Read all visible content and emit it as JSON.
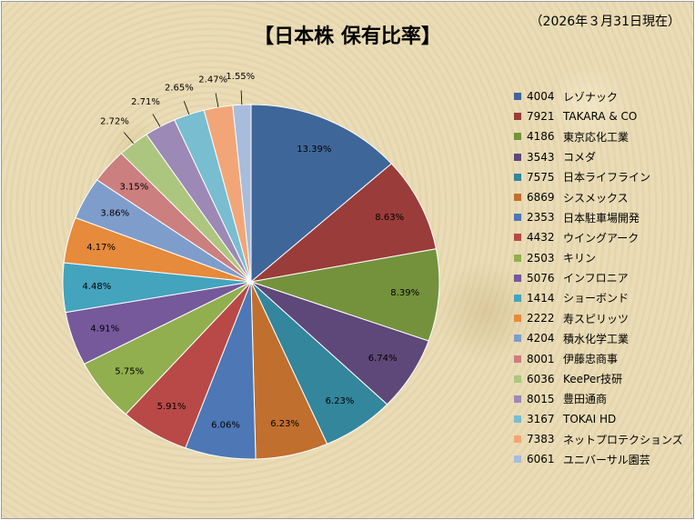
{
  "title": "【日本株 保有比率】",
  "subtitle": "（2026年３月31日現在）",
  "chart_data": {
    "type": "pie",
    "title": "【日本株 保有比率】",
    "subtitle": "（2026年３月31日現在）",
    "legend_position": "right",
    "slices": [
      {
        "code": "4004",
        "name": "レゾナック",
        "value": 13.39,
        "label": "13.39%",
        "color": "#3F6699"
      },
      {
        "code": "7921",
        "name": "TAKARA & CO",
        "value": 8.63,
        "label": "8.63%",
        "color": "#9A3C3A"
      },
      {
        "code": "4186",
        "name": "東京応化工業",
        "value": 8.39,
        "label": "8.39%",
        "color": "#74923C"
      },
      {
        "code": "3543",
        "name": "コメダ",
        "value": 6.74,
        "label": "6.74%",
        "color": "#5E4879"
      },
      {
        "code": "7575",
        "name": "日本ライフライン",
        "value": 6.23,
        "label": "6.23%",
        "color": "#33869C"
      },
      {
        "code": "6869",
        "name": "シスメックス",
        "value": 6.23,
        "label": "6.23%",
        "color": "#C06F2E"
      },
      {
        "code": "2353",
        "name": "日本駐車場開発",
        "value": 6.06,
        "label": "6.06%",
        "color": "#4D78B5"
      },
      {
        "code": "4432",
        "name": "ウイングアーク",
        "value": 5.91,
        "label": "5.91%",
        "color": "#B84947"
      },
      {
        "code": "2503",
        "name": "キリン",
        "value": 5.75,
        "label": "5.75%",
        "color": "#91AF4E"
      },
      {
        "code": "5076",
        "name": "インフロニア",
        "value": 4.91,
        "label": "4.91%",
        "color": "#75599A"
      },
      {
        "code": "1414",
        "name": "ショーボンド",
        "value": 4.48,
        "label": "4.48%",
        "color": "#44A3BD"
      },
      {
        "code": "2222",
        "name": "寿スピリッツ",
        "value": 4.17,
        "label": "4.17%",
        "color": "#E68A3C"
      },
      {
        "code": "4204",
        "name": "積水化学工業",
        "value": 3.86,
        "label": "3.86%",
        "color": "#7F9DCB"
      },
      {
        "code": "8001",
        "name": "伊藤忠商事",
        "value": 3.15,
        "label": "3.15%",
        "color": "#CB7F7E"
      },
      {
        "code": "6036",
        "name": "KeePer技研",
        "value": 2.72,
        "label": "2.72%",
        "color": "#ADC67F"
      },
      {
        "code": "8015",
        "name": "豊田通商",
        "value": 2.71,
        "label": "2.71%",
        "color": "#9C89B5"
      },
      {
        "code": "3167",
        "name": "TOKAI HD",
        "value": 2.65,
        "label": "2.65%",
        "color": "#79BDD1"
      },
      {
        "code": "7383",
        "name": "ネットプロテクションズ",
        "value": 2.47,
        "label": "2.47%",
        "color": "#F2A677"
      },
      {
        "code": "6061",
        "name": "ユニバーサル園芸",
        "value": 1.55,
        "label": "1.55%",
        "color": "#A8BCDC"
      }
    ]
  }
}
